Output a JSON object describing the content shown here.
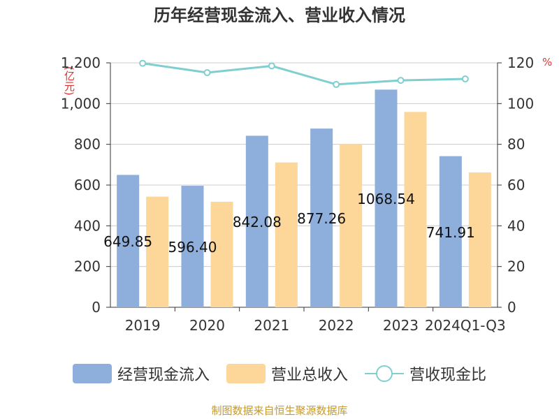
{
  "title": "历年经营现金流入、营业收入情况",
  "unit_left": "(亿元)",
  "unit_right": "%",
  "source": "制图数据来自恒生聚源数据库",
  "colors": {
    "cash_inflow": "#8eaedb",
    "revenue": "#fdd69a",
    "ratio": "#7fcfd0",
    "grid": "#cccccc",
    "axis": "#333333",
    "unit": "#e0302e"
  },
  "chart_data": {
    "type": "bar",
    "categories": [
      "2019",
      "2020",
      "2021",
      "2022",
      "2023",
      "2024Q1-Q3"
    ],
    "series": [
      {
        "name": "经营现金流入",
        "type": "bar",
        "axis": "left",
        "values": [
          649.85,
          596.4,
          842.08,
          877.26,
          1068.54,
          741.91
        ],
        "labels": [
          "649.85",
          "596.40",
          "842.08",
          "877.26",
          "1068.54",
          "741.91"
        ]
      },
      {
        "name": "营业总收入",
        "type": "bar",
        "axis": "left",
        "values": [
          543,
          518,
          711,
          801,
          959,
          662
        ]
      },
      {
        "name": "营收现金比",
        "type": "line",
        "axis": "right",
        "values": [
          119.8,
          115.2,
          118.5,
          109.4,
          111.4,
          112.1
        ]
      }
    ],
    "y_left": {
      "min": 0,
      "max": 1200,
      "ticks": [
        "0",
        "200",
        "400",
        "600",
        "800",
        "1,000",
        "1,200"
      ],
      "tick_values": [
        0,
        200,
        400,
        600,
        800,
        1000,
        1200
      ]
    },
    "y_right": {
      "min": 0,
      "max": 120,
      "ticks": [
        "0",
        "20",
        "40",
        "60",
        "80",
        "100",
        "120"
      ],
      "tick_values": [
        0,
        20,
        40,
        60,
        80,
        100,
        120
      ]
    },
    "grid": true,
    "legend_position": "bottom"
  }
}
